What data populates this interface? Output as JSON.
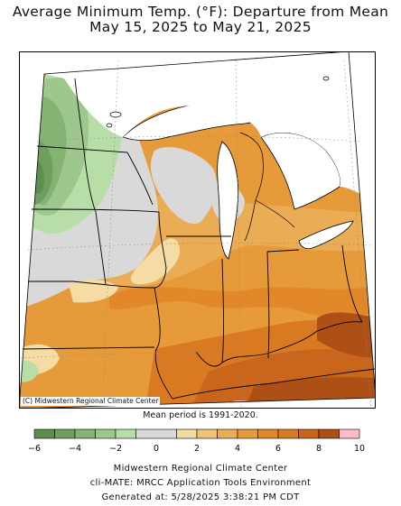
{
  "title_line1": "Average Minimum Temp. (°F): Departure from Mean",
  "title_line2": "May 15, 2025 to May 21, 2025",
  "credit": "(C) Midwestern Regional Climate Center",
  "mean_period": "Mean period is 1991-2020.",
  "legend": {
    "bins": [
      {
        "from": -6,
        "to": -5,
        "color": "#5b8f4e"
      },
      {
        "from": -5,
        "to": -4,
        "color": "#6f9f5f"
      },
      {
        "from": -4,
        "to": -3,
        "color": "#85b373"
      },
      {
        "from": -3,
        "to": -2,
        "color": "#9dc78c"
      },
      {
        "from": -2,
        "to": -1,
        "color": "#b8dea8"
      },
      {
        "from": -1,
        "to": 1,
        "color": "#d9d9d9"
      },
      {
        "from": 1,
        "to": 2,
        "color": "#f5dca5"
      },
      {
        "from": 2,
        "to": 3,
        "color": "#efc477"
      },
      {
        "from": 3,
        "to": 4,
        "color": "#eaac55"
      },
      {
        "from": 4,
        "to": 5,
        "color": "#e69a3a"
      },
      {
        "from": 5,
        "to": 6,
        "color": "#e2882a"
      },
      {
        "from": 6,
        "to": 7,
        "color": "#d97a22"
      },
      {
        "from": 7,
        "to": 8,
        "color": "#c9661c"
      },
      {
        "from": 8,
        "to": 9,
        "color": "#ae4f16"
      },
      {
        "from": 9,
        "to": 10,
        "color": "#ffbcc8"
      }
    ],
    "ticks": [
      "−6",
      "−4",
      "−2",
      "0",
      "2",
      "4",
      "6",
      "8",
      "10"
    ]
  },
  "footer_line1": "Midwestern Regional Climate Center",
  "footer_line2": "cli-MATE: MRCC Application Tools Environment",
  "footer_line3": "Generated at: 5/28/2025 3:38:21 PM CDT"
}
